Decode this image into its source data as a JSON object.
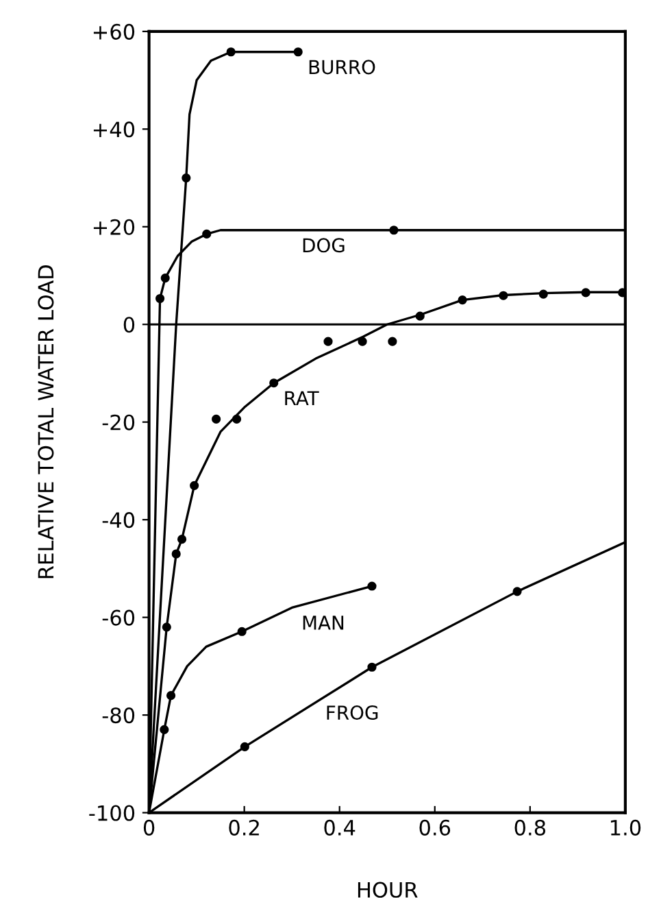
{
  "chart_data": {
    "type": "line",
    "xlabel": "HOUR",
    "ylabel": "RELATIVE TOTAL WATER LOAD",
    "xlim": [
      0,
      1.0
    ],
    "ylim": [
      -100,
      60
    ],
    "xticks": [
      0,
      0.2,
      0.4,
      0.6,
      0.8,
      {
        "value": 1.0,
        "label": "1.0"
      }
    ],
    "yticks": [
      -100,
      -80,
      -60,
      -40,
      -20,
      0,
      {
        "value": 20,
        "label": "+20"
      },
      {
        "value": 40,
        "label": "+40"
      },
      {
        "value": 60,
        "label": "+60"
      }
    ],
    "grid": false,
    "legend": false,
    "ref_lines": [
      {
        "axis": "y",
        "value": 0,
        "label": null,
        "color": "#000000"
      }
    ],
    "series": [
      {
        "marker": "none",
        "color": "#000000",
        "x": [
          0,
          0.057,
          0.078,
          0.085,
          0.1,
          0.13,
          0.172,
          0.313
        ],
        "values": [
          -100,
          0,
          30,
          43,
          50,
          54,
          55.8,
          55.8
        ]
      },
      {
        "type": "scatter",
        "marker": "circle",
        "color": "#000000",
        "x": [
          0.078,
          0.172,
          0.313
        ],
        "values": [
          30,
          55.8,
          55.8
        ]
      },
      {
        "marker": "none",
        "color": "#000000",
        "x": [
          0,
          0.023,
          0.034,
          0.06,
          0.09,
          0.121,
          0.15,
          0.514,
          1.0
        ],
        "values": [
          -100,
          5.3,
          9.5,
          14,
          17,
          18.5,
          19.3,
          19.3,
          19.3
        ]
      },
      {
        "type": "scatter",
        "marker": "circle",
        "color": "#000000",
        "x": [
          0.023,
          0.034,
          0.121,
          0.514
        ],
        "values": [
          5.3,
          9.5,
          18.5,
          19.3
        ]
      },
      {
        "marker": "none",
        "color": "#000000",
        "x": [
          0,
          0.037,
          0.057,
          0.069,
          0.095,
          0.15,
          0.2,
          0.262,
          0.35,
          0.45,
          0.5,
          0.57,
          0.658,
          0.744,
          0.828,
          0.917,
          1.0
        ],
        "values": [
          -100,
          -62,
          -47,
          -44,
          -33,
          -22,
          -17,
          -12,
          -7,
          -2.5,
          0,
          2,
          5,
          6,
          6.4,
          6.6,
          6.6
        ]
      },
      {
        "type": "scatter",
        "marker": "circle",
        "color": "#000000",
        "x": [
          0.037,
          0.057,
          0.069,
          0.095,
          0.141,
          0.184,
          0.262,
          0.376,
          0.448,
          0.511,
          0.569,
          0.658,
          0.744,
          0.828,
          0.917,
          0.994
        ],
        "values": [
          -62,
          -47,
          -44,
          -33,
          -19.4,
          -19.4,
          -12,
          -3.5,
          -3.5,
          -3.5,
          1.7,
          5,
          5.9,
          6.2,
          6.5,
          6.5
        ]
      },
      {
        "marker": "none",
        "color": "#000000",
        "x": [
          0,
          0.032,
          0.046,
          0.08,
          0.12,
          0.195,
          0.3,
          0.468
        ],
        "values": [
          -100,
          -83,
          -76,
          -70,
          -66,
          -62.9,
          -58,
          -53.6
        ]
      },
      {
        "type": "scatter",
        "marker": "circle",
        "color": "#000000",
        "x": [
          0.032,
          0.046,
          0.195,
          0.468
        ],
        "values": [
          -83,
          -76,
          -62.9,
          -53.6
        ]
      },
      {
        "marker": "none",
        "color": "#000000",
        "x": [
          0,
          0.201,
          0.468,
          0.773,
          1.0
        ],
        "values": [
          -100,
          -86.5,
          -70.2,
          -54.7,
          -44.6
        ]
      },
      {
        "type": "scatter",
        "marker": "circle",
        "color": "#000000",
        "x": [
          0.201,
          0.468,
          0.773
        ],
        "values": [
          -86.5,
          -70.2,
          -54.7
        ]
      }
    ],
    "annotations": [
      {
        "text": "BURRO",
        "x": 0.313,
        "y": 55.8
      },
      {
        "text": "DOG",
        "x": 0.3,
        "y": 19.3
      },
      {
        "text": "RAT",
        "x": 0.262,
        "y": -12
      },
      {
        "text": "MAN",
        "x": 0.3,
        "y": -58
      },
      {
        "text": "FROG",
        "x": 0.35,
        "y": -76.4
      }
    ]
  }
}
